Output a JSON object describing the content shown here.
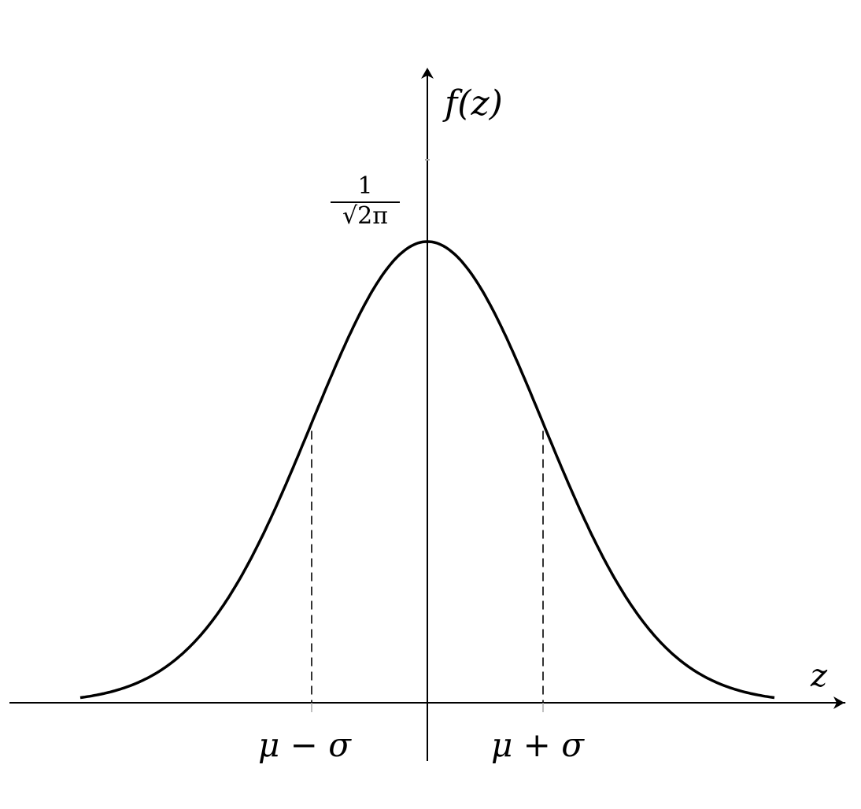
{
  "chart_data": {
    "type": "line",
    "function": "standard normal density",
    "series": [
      {
        "x_range": [
          -3,
          3
        ],
        "peak": 0.3989
      }
    ],
    "xlim": [
      -3.6,
      3.6
    ],
    "ylim": [
      0,
      0.55
    ],
    "xlabel": "z",
    "ylabel": "f(z)",
    "peak_label": {
      "numerator": "1",
      "denominator": "√2π"
    },
    "x_tick_labels": [
      {
        "x": -1,
        "text": "μ − σ"
      },
      {
        "x": 1,
        "text": "μ + σ"
      }
    ],
    "dashed_lines_at": [
      -1,
      1
    ],
    "grid": false,
    "colors": {
      "curve": "#000000",
      "axis": "#000000",
      "ticks": "#aaaaaa"
    }
  }
}
